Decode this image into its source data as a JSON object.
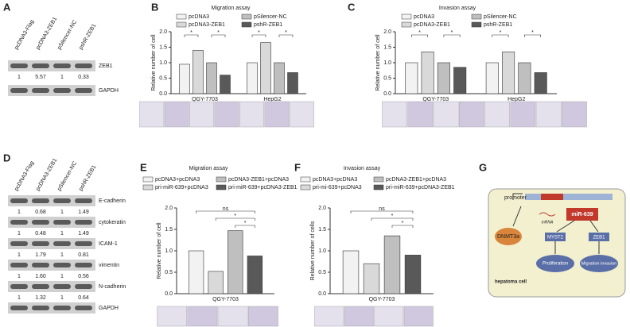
{
  "panel_labels": [
    "A",
    "B",
    "C",
    "D",
    "E",
    "F",
    "G"
  ],
  "blot_a": {
    "lanes": [
      "pcDNA3-Flag",
      "pcDNA3-ZEB1",
      "pSilencer-NC",
      "pshR-ZEB1"
    ],
    "rows": [
      {
        "label": "ZEB1",
        "quant": [
          "1",
          "5.57",
          "1",
          "0.33"
        ]
      },
      {
        "label": "GAPDH"
      }
    ]
  },
  "blot_d": {
    "lanes": [
      "pcDNA3-Flag",
      "pcDNA3-ZEB1",
      "pSilencer-NC",
      "pshR-ZEB1"
    ],
    "rows": [
      {
        "label": "E-cadherin",
        "quant": [
          "1",
          "0.68",
          "1",
          "1.49"
        ]
      },
      {
        "label": "cytokeratin",
        "quant": [
          "1",
          "0.48",
          "1",
          "1.49"
        ]
      },
      {
        "label": "ICAM-1",
        "quant": [
          "1",
          "1.79",
          "1",
          "0.81"
        ]
      },
      {
        "label": "vimentin",
        "quant": [
          "1",
          "1.60",
          "1",
          "0.56"
        ]
      },
      {
        "label": "N-cadherin",
        "quant": [
          "1",
          "1.32",
          "1",
          "0.64"
        ]
      },
      {
        "label": "GAPDH"
      }
    ]
  },
  "chart_data": [
    {
      "type": "bar",
      "title": "Migration assay",
      "y_label": "Relative number of cell",
      "categories": [
        "QGY-7703",
        "HepG2"
      ],
      "series": [
        {
          "name": "pcDNA3",
          "color": "#f2f2f2",
          "values": [
            0.95,
            1.0
          ]
        },
        {
          "name": "pcDNA3-ZEB1",
          "color": "#d9d9d9",
          "values": [
            1.4,
            1.65
          ]
        },
        {
          "name": "pSilencer-NC",
          "color": "#bfbfbf",
          "values": [
            1.0,
            1.0
          ]
        },
        {
          "name": "pshR-ZEB1",
          "color": "#595959",
          "values": [
            0.6,
            0.68
          ]
        }
      ],
      "ylim": [
        0,
        2
      ],
      "yticks": [
        {
          "value": 0,
          "label": "0.0"
        },
        {
          "value": 0.5,
          "label": "0.5"
        },
        {
          "value": 1,
          "label": "1.0"
        },
        {
          "value": 1.5,
          "label": "1.5"
        },
        {
          "value": 2,
          "label": "2.0"
        }
      ],
      "annotations": [
        "*",
        "*",
        "*",
        "*"
      ]
    },
    {
      "type": "bar",
      "title": "Invasion assay",
      "y_label": "Relative number of cell",
      "categories": [
        "QGY-7703",
        "HepG2"
      ],
      "series": [
        {
          "name": "pcDNA3",
          "color": "#f2f2f2",
          "values": [
            1.0,
            1.0
          ]
        },
        {
          "name": "pcDNA3-ZEB1",
          "color": "#d9d9d9",
          "values": [
            1.35,
            1.35
          ]
        },
        {
          "name": "pSilencer-NC",
          "color": "#bfbfbf",
          "values": [
            1.0,
            1.0
          ]
        },
        {
          "name": "pshR-ZEB1",
          "color": "#595959",
          "values": [
            0.85,
            0.68
          ]
        }
      ],
      "ylim": [
        0,
        2
      ],
      "yticks": [
        {
          "value": 0,
          "label": "0.0"
        },
        {
          "value": 0.5,
          "label": "0.5"
        },
        {
          "value": 1,
          "label": "1.0"
        },
        {
          "value": 1.5,
          "label": "1.5"
        },
        {
          "value": 2,
          "label": "2.0"
        }
      ],
      "annotations": [
        "*",
        "*",
        "*",
        "*"
      ]
    },
    {
      "type": "bar",
      "title": "Migration assay",
      "y_label": "Relative number of cell",
      "categories": [
        "QGY-7703"
      ],
      "series": [
        {
          "name": "pcDNA3+pcDNA3",
          "color": "#f2f2f2",
          "values": [
            1.0
          ]
        },
        {
          "name": "pri-miR-639+pcDNA3",
          "color": "#d9d9d9",
          "values": [
            0.52
          ]
        },
        {
          "name": "pcDNA3-ZEB1+pcDNA3",
          "color": "#bfbfbf",
          "values": [
            1.47
          ]
        },
        {
          "name": "pri-miR-639+pcDNA3-ZEB1",
          "color": "#595959",
          "values": [
            0.88
          ]
        }
      ],
      "ylim": [
        0,
        2
      ],
      "yticks": [
        {
          "value": 0,
          "label": "0.0"
        },
        {
          "value": 0.5,
          "label": "0.5"
        },
        {
          "value": 1,
          "label": "1.0"
        },
        {
          "value": 1.5,
          "label": "1.5"
        },
        {
          "value": 2,
          "label": "2.0"
        }
      ],
      "annotations": [
        "ns",
        "*",
        "*"
      ]
    },
    {
      "type": "bar",
      "title": "Invasion assay",
      "y_label": "Relative number of cells",
      "categories": [
        "QGY-7703"
      ],
      "series": [
        {
          "name": "pcDNA3+pcDNA3",
          "color": "#f2f2f2",
          "values": [
            1.0
          ]
        },
        {
          "name": "pri-mi-639+pcDNA3",
          "color": "#d9d9d9",
          "values": [
            0.7
          ]
        },
        {
          "name": "pcDNA3-ZEB1+pcDNA3",
          "color": "#bfbfbf",
          "values": [
            1.35
          ]
        },
        {
          "name": "pri-miR-639+pcDNA3-ZEB1",
          "color": "#595959",
          "values": [
            0.9
          ]
        }
      ],
      "ylim": [
        0,
        2
      ],
      "yticks": [
        {
          "value": 0,
          "label": "0.0"
        },
        {
          "value": 0.5,
          "label": "0.5"
        },
        {
          "value": 1,
          "label": "1.0"
        },
        {
          "value": 1.5,
          "label": "1.5"
        },
        {
          "value": 2,
          "label": "2.0"
        }
      ],
      "annotations": [
        "ns",
        "*",
        "*"
      ]
    }
  ],
  "diagram_g": {
    "promoter": "promoter",
    "enzyme": "DNMT3a",
    "rna": "mRNA",
    "mirna": "miR-639",
    "target1": "MYST2",
    "target2": "ZEB1",
    "outcome1": "Proliferation",
    "outcome2": "Migration invasion",
    "cell": "hepatoma cell"
  }
}
